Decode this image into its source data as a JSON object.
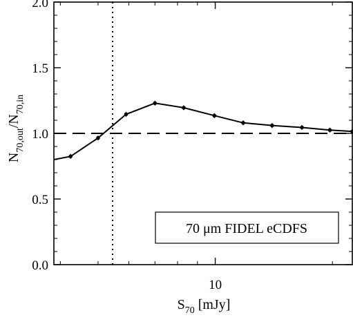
{
  "chart_data": {
    "type": "line",
    "xscale": "log",
    "xlim": [
      3.85,
      22.5
    ],
    "ylim": [
      0.0,
      2.0
    ],
    "x_ticks": [
      {
        "value": 10,
        "label": "10"
      }
    ],
    "y_ticks": [
      {
        "value": 0.0,
        "label": "0.0"
      },
      {
        "value": 0.5,
        "label": "0.5"
      },
      {
        "value": 1.0,
        "label": "1.0"
      },
      {
        "value": 1.5,
        "label": "1.5"
      },
      {
        "value": 2.0,
        "label": "2.0"
      }
    ],
    "xlabel": {
      "main": "S",
      "sub": "70",
      "rest": " [mJy]"
    },
    "ylabel": {
      "p1": "N",
      "s1": "70,out",
      "p2": "/N",
      "s2": "70,in"
    },
    "legend_text": "70 μm FIDEL eCDFS",
    "legend_position": "bottom-right",
    "series": [
      {
        "x": [
          3.85,
          4.25,
          5.0,
          5.9,
          7.0,
          8.3,
          9.95,
          11.8,
          14.0,
          16.7,
          19.7,
          22.5
        ],
        "y": [
          0.8,
          0.825,
          0.965,
          1.145,
          1.23,
          1.195,
          1.135,
          1.08,
          1.06,
          1.045,
          1.025,
          1.015
        ],
        "line_color": "#000000",
        "marker": "point"
      }
    ],
    "reference_lines": [
      {
        "orientation": "horizontal",
        "value": 1.0,
        "style": "dashed"
      },
      {
        "orientation": "vertical",
        "value": 5.45,
        "style": "dotted"
      }
    ]
  }
}
